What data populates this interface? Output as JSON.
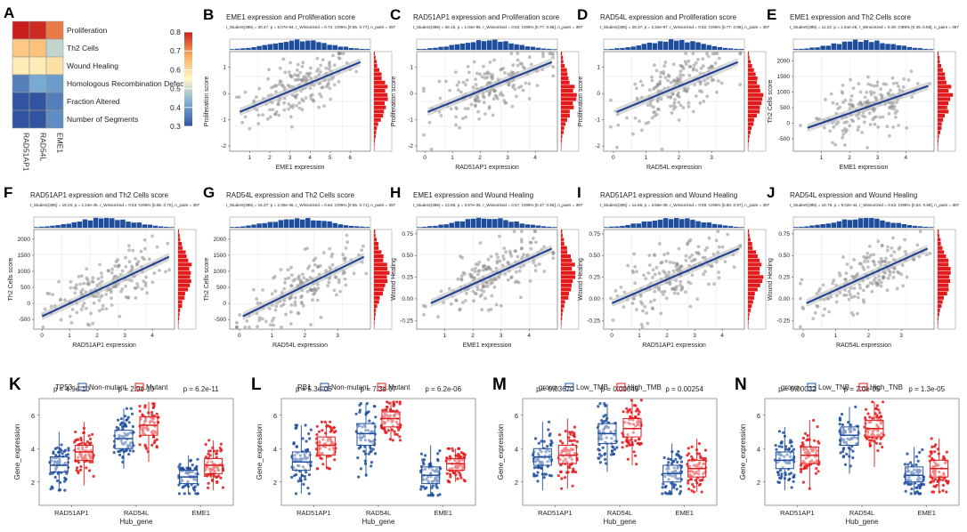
{
  "colors": {
    "blue": "#1f4e9c",
    "red": "#e31a1c",
    "scatter": "#8c8c8c",
    "line": "#1f3f8f",
    "band": "#bfbfbf",
    "histBlue": "#1f4e9c",
    "histRed": "#e31a1c"
  },
  "chart_data": [
    {
      "panel": "A",
      "type": "heatmap",
      "rows": [
        "Proliferation",
        "Th2 Cells",
        "Wound Healing",
        "Homologous Recombination Defects",
        "Fraction Altered",
        "Number of Segments"
      ],
      "columns": [
        "RAD51AP1",
        "RAD54L",
        "EME1"
      ],
      "values": [
        [
          0.8,
          0.79,
          0.72
        ],
        [
          0.63,
          0.64,
          0.49
        ],
        [
          0.57,
          0.57,
          0.59
        ],
        [
          0.36,
          0.42,
          0.4
        ],
        [
          0.24,
          0.28,
          0.36
        ],
        [
          0.26,
          0.29,
          0.38
        ]
      ],
      "colorbar": {
        "min": 0.3,
        "max": 0.8,
        "ticks": [
          "0.8",
          "0.7",
          "0.6",
          "0.5",
          "0.4",
          "0.3"
        ]
      }
    },
    {
      "panel": "B",
      "type": "scatter",
      "title": "EME1 expression and Proliferation score",
      "stats": "t_Student(395) = 20.47, p = 5.07e-64, r_Winsorized = 0.72, CI95% [0.65, 0.77], n_pairs = 397",
      "xlabel": "EME1 expression",
      "ylabel": "Proliferation score",
      "xticks": [
        "1",
        "2",
        "3",
        "4",
        "5",
        "6"
      ],
      "yticks": [
        "1",
        "0",
        "-1",
        "-2"
      ],
      "xlim": [
        0,
        7
      ],
      "ylim": [
        -2.2,
        1.6
      ],
      "fit": [
        [
          0.5,
          -0.7
        ],
        [
          6.5,
          1.2
        ]
      ],
      "n_points": 180
    },
    {
      "panel": "C",
      "type": "scatter",
      "title": "RAD51AP1 expression and Proliferation score",
      "stats": "t_Student(395) = 28.15, p = 1.84e-96, r_Winsorized = 0.82, CI95% [0.77, 0.86], n_pairs = 397",
      "xlabel": "RAD51AP1 expression",
      "ylabel": "Proliferation score",
      "xticks": [
        "0",
        "1",
        "2",
        "3",
        "4"
      ],
      "yticks": [
        "1",
        "0",
        "-1",
        "-2"
      ],
      "xlim": [
        -0.3,
        4.8
      ],
      "ylim": [
        -2.2,
        1.6
      ],
      "fit": [
        [
          0.1,
          -0.7
        ],
        [
          4.6,
          1.2
        ]
      ],
      "n_points": 180
    },
    {
      "panel": "D",
      "type": "scatter",
      "title": "RAD54L expression and Proliferation score",
      "stats": "t_Student(395) = 28.37, p = 2.34e-97, r_Winsorized = 0.82, CI95% [0.77, 0.86], n_pairs = 397",
      "xlabel": "RAD54L expression",
      "ylabel": "Proliferation score",
      "xticks": [
        "0",
        "1",
        "2",
        "3"
      ],
      "yticks": [
        "1",
        "0",
        "-1",
        "-2"
      ],
      "xlim": [
        -0.3,
        4.0
      ],
      "ylim": [
        -2.2,
        1.6
      ],
      "fit": [
        [
          0.1,
          -0.7
        ],
        [
          3.8,
          1.2
        ]
      ],
      "n_points": 180
    },
    {
      "panel": "E",
      "type": "scatter",
      "title": "EME1 expression and Th2 Cells score",
      "stats": "t_Student(395) = 11.22, p = 1.54e-25, r_Winsorized = 0.49, CI95% [0.39, 0.58], n_pairs = 397",
      "xlabel": "EME1 expression",
      "ylabel": "Th2 Cells score",
      "xticks": [
        "1",
        "2",
        "3",
        "4"
      ],
      "yticks": [
        "2000",
        "1500",
        "1000",
        "500",
        "0",
        "-500"
      ],
      "xlim": [
        0,
        5
      ],
      "ylim": [
        -900,
        2300
      ],
      "fit": [
        [
          0.5,
          -150
        ],
        [
          4.8,
          1200
        ]
      ],
      "n_points": 180
    },
    {
      "panel": "F",
      "type": "scatter",
      "title": "RAD51AP1 expression and Th2 Cells score",
      "stats": "t_Student(395) = 16.20, p = 1.24e-45, r_Winsorized = 0.63, CI95% [0.55, 0.70], n_pairs = 397",
      "xlabel": "RAD51AP1 expression",
      "ylabel": "Th2 Cells score",
      "xticks": [
        "0",
        "1",
        "2",
        "3",
        "4"
      ],
      "yticks": [
        "2000",
        "1500",
        "1000",
        "500",
        "0",
        "-500"
      ],
      "xlim": [
        -0.3,
        4.8
      ],
      "ylim": [
        -800,
        2300
      ],
      "fit": [
        [
          0.0,
          -400
        ],
        [
          4.6,
          1450
        ]
      ],
      "n_points": 180
    },
    {
      "panel": "G",
      "type": "scatter",
      "title": "RAD54L expression and Th2 Cells score",
      "stats": "t_Student(395) = 16.37, p = 2.35e-46, r_Winsorized = 0.64, CI95% [0.55, 0.71], n_pairs = 397",
      "xlabel": "RAD54L expression",
      "ylabel": "Th2 Cells score",
      "xticks": [
        "0",
        "1",
        "2",
        "3"
      ],
      "yticks": [
        "2000",
        "1500",
        "1000",
        "500",
        "0",
        "-500"
      ],
      "xlim": [
        -0.3,
        4.0
      ],
      "ylim": [
        -800,
        2300
      ],
      "fit": [
        [
          0.1,
          -400
        ],
        [
          3.8,
          1450
        ]
      ],
      "n_points": 180
    },
    {
      "panel": "H",
      "type": "scatter",
      "title": "EME1 expression and Wound Healing",
      "stats": "t_Student(395) = 13.68, p = 3.87e-35, r_Winsorized = 0.57, CI95% [0.47, 0.65], n_pairs = 397",
      "xlabel": "EME1 expression",
      "ylabel": "Wound Healing",
      "xticks": [
        "1",
        "2",
        "3",
        "4"
      ],
      "yticks": [
        "0.75",
        "0.50",
        "0.25",
        "0.00",
        "-0.25"
      ],
      "xlim": [
        0,
        5
      ],
      "ylim": [
        -0.35,
        0.8
      ],
      "fit": [
        [
          0.5,
          -0.05
        ],
        [
          4.8,
          0.58
        ]
      ],
      "n_points": 180
    },
    {
      "panel": "I",
      "type": "scatter",
      "title": "RAD51AP1 expression and Wound Healing",
      "stats": "t_Student(395) = 14.66, p = 3.59e-39, r_Winsorized = 0.59, CI95% [0.50, 0.67], n_pairs = 397",
      "xlabel": "RAD51AP1 expression",
      "ylabel": "Wound Healing",
      "xticks": [
        "0",
        "1",
        "2",
        "3",
        "4"
      ],
      "yticks": [
        "0.75",
        "0.50",
        "0.25",
        "0.00",
        "-0.25"
      ],
      "xlim": [
        -0.3,
        4.8
      ],
      "ylim": [
        -0.35,
        0.8
      ],
      "fit": [
        [
          0.0,
          -0.05
        ],
        [
          4.6,
          0.58
        ]
      ],
      "n_points": 180
    },
    {
      "panel": "J",
      "type": "scatter",
      "title": "RAD54L expression and Wound Healing",
      "stats": "t_Student(395) = 15.76, p = 9.02e-44, r_Winsorized = 0.62, CI95% [0.54, 0.69], n_pairs = 397",
      "xlabel": "RAD54L expression",
      "ylabel": "Wound Healing",
      "xticks": [
        "0",
        "1",
        "2",
        "3"
      ],
      "yticks": [
        "0.75",
        "0.50",
        "0.25",
        "0.00",
        "-0.25"
      ],
      "xlim": [
        -0.3,
        4.0
      ],
      "ylim": [
        -0.35,
        0.8
      ],
      "fit": [
        [
          0.1,
          -0.05
        ],
        [
          3.8,
          0.58
        ]
      ],
      "n_points": 180
    },
    {
      "panel": "K",
      "type": "box",
      "legend_title": "TP53",
      "groups": [
        "Non-mutant",
        "Mutant"
      ],
      "categories": [
        "RAD51AP1",
        "RAD54L",
        "EME1"
      ],
      "pvalues": [
        "p = 4.9e-10",
        "p = 2.9e-10",
        "p = 6.2e-11"
      ],
      "xlabel": "Hub_gene",
      "ylabel": "Gene_expression",
      "yticks": [
        "2",
        "4",
        "6"
      ],
      "ylim": [
        0.6,
        7.0
      ],
      "stats": [
        [
          [
            2.6,
            3.0,
            3.5,
            1.5,
            5.0
          ],
          [
            3.3,
            3.8,
            4.2,
            1.8,
            5.6
          ]
        ],
        [
          [
            4.0,
            4.6,
            5.1,
            2.8,
            6.4
          ],
          [
            4.8,
            5.4,
            5.9,
            3.2,
            6.8
          ]
        ],
        [
          [
            1.9,
            2.3,
            2.7,
            1.3,
            3.6
          ],
          [
            2.5,
            3.0,
            3.4,
            1.5,
            4.5
          ]
        ]
      ]
    },
    {
      "panel": "L",
      "type": "box",
      "legend_title": "RB1",
      "groups": [
        "Non-mutant",
        "Mutant"
      ],
      "categories": [
        "RAD51AP1",
        "RAD54L",
        "EME1"
      ],
      "pvalues": [
        "p = 5.3e-06",
        "p = 7.3e-07",
        "p = 6.2e-06"
      ],
      "xlabel": "Hub_gene",
      "ylabel": "Gene_expression",
      "yticks": [
        "2",
        "4",
        "6"
      ],
      "ylim": [
        0.6,
        7.0
      ],
      "stats": [
        [
          [
            2.7,
            3.2,
            3.8,
            1.3,
            5.4
          ],
          [
            3.6,
            4.2,
            4.7,
            2.8,
            5.6
          ]
        ],
        [
          [
            4.2,
            4.9,
            5.5,
            2.3,
            6.7
          ],
          [
            5.3,
            5.8,
            6.2,
            4.5,
            6.8
          ]
        ],
        [
          [
            1.9,
            2.4,
            2.9,
            1.2,
            4.2
          ],
          [
            2.7,
            3.1,
            3.4,
            2.0,
            4.0
          ]
        ]
      ]
    },
    {
      "panel": "M",
      "type": "box",
      "legend_title": "group",
      "groups": [
        "Low_TMB",
        "High_TMB"
      ],
      "categories": [
        "RAD51AP1",
        "RAD54L",
        "EME1"
      ],
      "pvalues": [
        "p = 0.03670",
        "p = 0.00045",
        "p = 0.00254"
      ],
      "xlabel": "Hub_gene",
      "ylabel": "Gene_expression",
      "yticks": [
        "2",
        "4",
        "6"
      ],
      "ylim": [
        0.6,
        7.0
      ],
      "stats": [
        [
          [
            3.0,
            3.5,
            4.0,
            1.5,
            5.6
          ],
          [
            3.1,
            3.6,
            4.2,
            1.6,
            5.8
          ]
        ],
        [
          [
            4.3,
            4.9,
            5.5,
            2.6,
            6.7
          ],
          [
            4.7,
            5.2,
            5.8,
            3.0,
            6.9
          ]
        ],
        [
          [
            2.0,
            2.5,
            3.0,
            1.3,
            4.3
          ],
          [
            2.3,
            2.8,
            3.3,
            1.4,
            4.6
          ]
        ]
      ]
    },
    {
      "panel": "N",
      "type": "box",
      "legend_title": "group",
      "groups": [
        "Low_TNB",
        "High_TNB"
      ],
      "categories": [
        "RAD51AP1",
        "RAD54L",
        "EME1"
      ],
      "pvalues": [
        "p = 0.00032",
        "p = 2.0e-05",
        "p = 1.3e-05"
      ],
      "xlabel": "Hub_gene",
      "ylabel": "Gene_expression",
      "yticks": [
        "2",
        "4",
        "6"
      ],
      "ylim": [
        0.6,
        7.0
      ],
      "stats": [
        [
          [
            2.8,
            3.3,
            3.8,
            1.5,
            5.3
          ],
          [
            3.1,
            3.6,
            4.1,
            1.6,
            5.7
          ]
        ],
        [
          [
            4.2,
            4.8,
            5.3,
            2.5,
            6.5
          ],
          [
            4.7,
            5.2,
            5.7,
            2.9,
            6.8
          ]
        ],
        [
          [
            2.0,
            2.4,
            2.9,
            1.3,
            4.1
          ],
          [
            2.3,
            2.8,
            3.3,
            1.4,
            4.6
          ]
        ]
      ]
    }
  ]
}
